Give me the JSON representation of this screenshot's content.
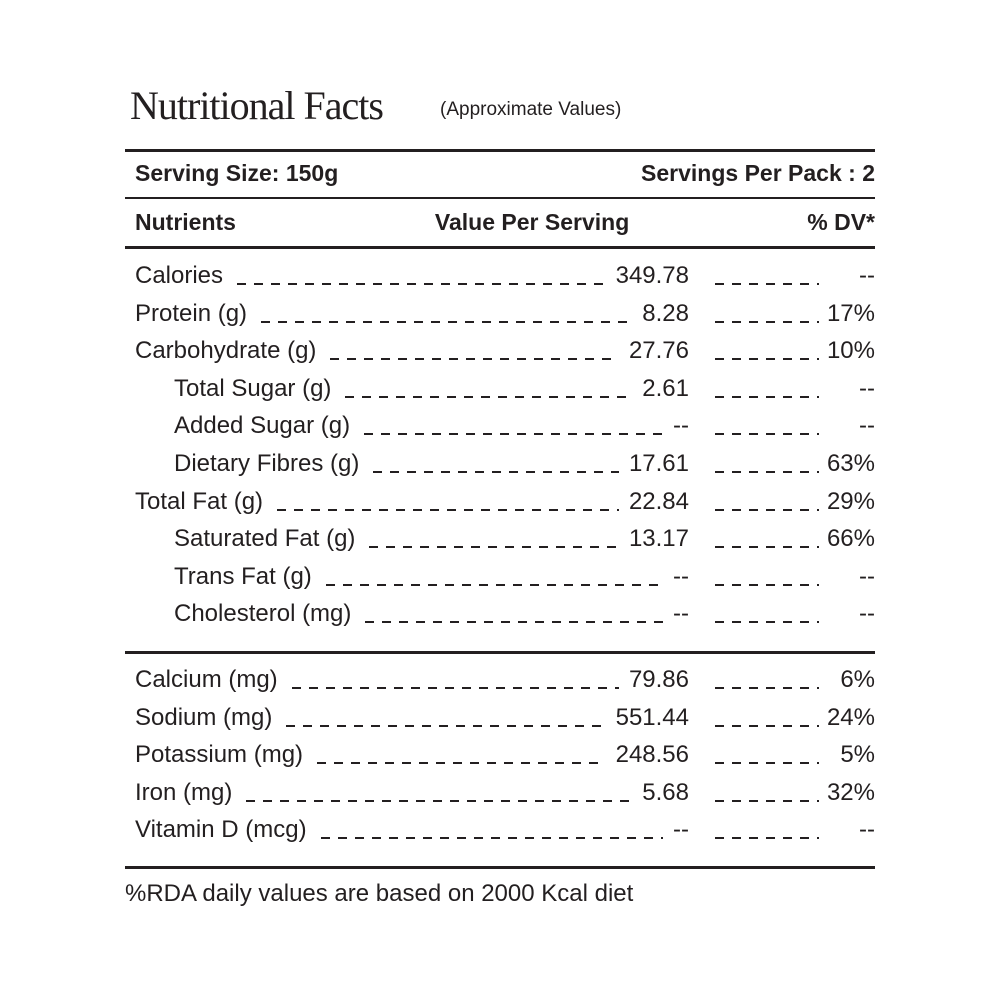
{
  "title": "Nutritional Facts",
  "subtitle": "(Approximate Values)",
  "serving_size": "Serving Size: 150g",
  "servings_per_pack": "Servings Per Pack : 2",
  "headers": {
    "nutrient": "Nutrients",
    "value": "Value Per Serving",
    "dv": "% DV*"
  },
  "group1": [
    {
      "name": "Calories",
      "value": "349.78",
      "dv": "--",
      "indent": false
    },
    {
      "name": "Protein (g)",
      "value": "8.28",
      "dv": "17%",
      "indent": false
    },
    {
      "name": "Carbohydrate (g)",
      "value": "27.76",
      "dv": "10%",
      "indent": false
    },
    {
      "name": "Total Sugar (g)",
      "value": "2.61",
      "dv": "--",
      "indent": true
    },
    {
      "name": "Added Sugar (g)",
      "value": "--",
      "dv": "--",
      "indent": true
    },
    {
      "name": "Dietary Fibres (g)",
      "value": "17.61",
      "dv": "63%",
      "indent": true
    },
    {
      "name": "Total Fat (g)",
      "value": "22.84",
      "dv": "29%",
      "indent": false
    },
    {
      "name": "Saturated Fat (g)",
      "value": "13.17",
      "dv": "66%",
      "indent": true
    },
    {
      "name": "Trans Fat (g)",
      "value": "--",
      "dv": "--",
      "indent": true
    },
    {
      "name": "Cholesterol (mg)",
      "value": "--",
      "dv": "--",
      "indent": true
    }
  ],
  "group2": [
    {
      "name": "Calcium (mg)",
      "value": "79.86",
      "dv": "6%",
      "indent": false
    },
    {
      "name": "Sodium (mg)",
      "value": "551.44",
      "dv": "24%",
      "indent": false
    },
    {
      "name": "Potassium (mg)",
      "value": "248.56",
      "dv": "5%",
      "indent": false
    },
    {
      "name": "Iron (mg)",
      "value": "5.68",
      "dv": "32%",
      "indent": false
    },
    {
      "name": "Vitamin D (mcg)",
      "value": "--",
      "dv": "--",
      "indent": false
    }
  ],
  "footer": "%RDA daily values are based on 2000 Kcal diet"
}
